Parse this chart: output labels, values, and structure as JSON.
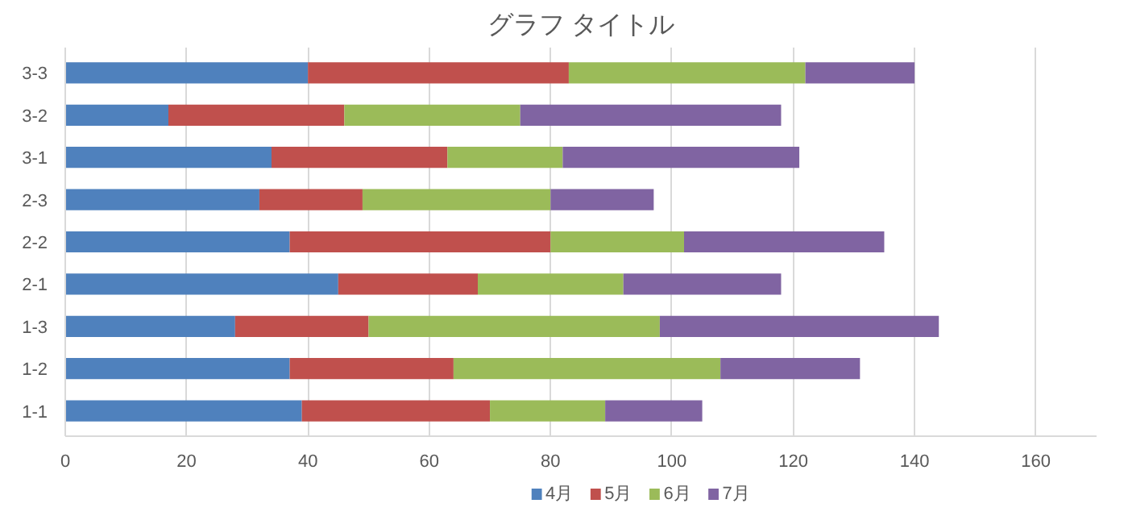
{
  "chart_data": {
    "type": "bar",
    "orientation": "horizontal",
    "stacked": true,
    "title": "グラフ タイトル",
    "categories": [
      "3-3",
      "3-2",
      "3-1",
      "2-3",
      "2-2",
      "2-1",
      "1-3",
      "1-2",
      "1-1"
    ],
    "series": [
      {
        "name": "4月",
        "color": "#4f81bd",
        "values": [
          40,
          17,
          34,
          32,
          37,
          45,
          28,
          37,
          39
        ]
      },
      {
        "name": "5月",
        "color": "#c0504d",
        "values": [
          43,
          29,
          29,
          17,
          43,
          23,
          22,
          27,
          31
        ]
      },
      {
        "name": "6月",
        "color": "#9bbb59",
        "values": [
          39,
          29,
          19,
          31,
          22,
          24,
          48,
          44,
          19
        ]
      },
      {
        "name": "7月",
        "color": "#8064a2",
        "values": [
          18,
          43,
          39,
          17,
          33,
          26,
          46,
          23,
          16
        ]
      }
    ],
    "xlim": [
      0,
      170
    ],
    "xticks": [
      0,
      20,
      40,
      60,
      80,
      100,
      120,
      140,
      160
    ],
    "grid": "x",
    "legend": "bottom"
  }
}
